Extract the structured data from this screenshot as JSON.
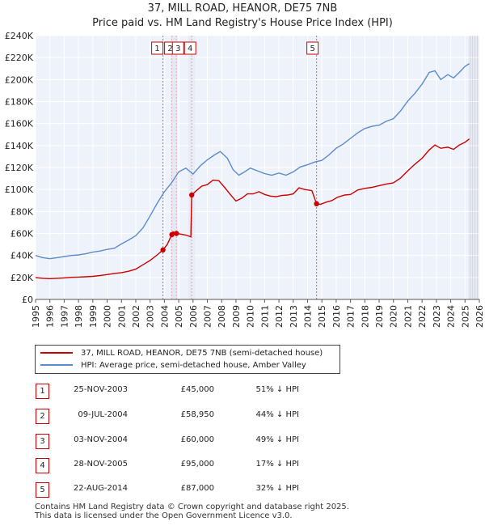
{
  "title_line1": "37, MILL ROAD, HEANOR, DE75 7NB",
  "title_line2": "Price paid vs. HM Land Registry's House Price Index (HPI)",
  "chart_data": {
    "type": "line",
    "xlim": [
      1995,
      2026
    ],
    "ylim": [
      0,
      240000
    ],
    "x_ticks": [
      "1995",
      "1996",
      "1997",
      "1998",
      "1999",
      "2000",
      "2001",
      "2002",
      "2003",
      "2004",
      "2005",
      "2006",
      "2007",
      "2008",
      "2009",
      "2010",
      "2011",
      "2012",
      "2013",
      "2014",
      "2015",
      "2016",
      "2017",
      "2018",
      "2019",
      "2020",
      "2021",
      "2022",
      "2023",
      "2024",
      "2025",
      "2026"
    ],
    "y_ticks": [
      {
        "value": 0,
        "label": "£0"
      },
      {
        "value": 20000,
        "label": "£20K"
      },
      {
        "value": 40000,
        "label": "£40K"
      },
      {
        "value": 60000,
        "label": "£60K"
      },
      {
        "value": 80000,
        "label": "£80K"
      },
      {
        "value": 100000,
        "label": "£100K"
      },
      {
        "value": 120000,
        "label": "£120K"
      },
      {
        "value": 140000,
        "label": "£140K"
      },
      {
        "value": 160000,
        "label": "£160K"
      },
      {
        "value": 180000,
        "label": "£180K"
      },
      {
        "value": 200000,
        "label": "£200K"
      },
      {
        "value": 220000,
        "label": "£220K"
      },
      {
        "value": 240000,
        "label": "£240K"
      }
    ],
    "forecast_start": 2025.25,
    "series": [
      {
        "name": "37, MILL ROAD, HEANOR, DE75 7NB (semi-detached house)",
        "color": "#cc0000",
        "points": [
          [
            1995.0,
            19800
          ],
          [
            1995.5,
            19200
          ],
          [
            1996.0,
            18900
          ],
          [
            1996.5,
            19200
          ],
          [
            1997.0,
            19600
          ],
          [
            1997.5,
            20100
          ],
          [
            1998.0,
            20300
          ],
          [
            1998.5,
            20600
          ],
          [
            1999.0,
            21000
          ],
          [
            1999.5,
            21700
          ],
          [
            2000.0,
            22600
          ],
          [
            2000.5,
            23600
          ],
          [
            2001.0,
            24400
          ],
          [
            2001.5,
            25600
          ],
          [
            2002.0,
            27500
          ],
          [
            2002.5,
            31500
          ],
          [
            2003.0,
            35500
          ],
          [
            2003.5,
            40500
          ],
          [
            2003.9,
            45000
          ],
          [
            2004.2,
            50000
          ],
          [
            2004.52,
            58950
          ],
          [
            2004.6,
            61500
          ],
          [
            2004.84,
            60000
          ],
          [
            2005.1,
            59500
          ],
          [
            2005.5,
            58500
          ],
          [
            2005.85,
            57000
          ],
          [
            2005.91,
            95000
          ],
          [
            2006.2,
            98500
          ],
          [
            2006.6,
            103000
          ],
          [
            2007.0,
            104500
          ],
          [
            2007.4,
            108500
          ],
          [
            2007.8,
            108000
          ],
          [
            2008.2,
            102000
          ],
          [
            2008.6,
            95500
          ],
          [
            2009.0,
            89500
          ],
          [
            2009.4,
            92000
          ],
          [
            2009.8,
            96000
          ],
          [
            2010.2,
            96000
          ],
          [
            2010.6,
            98000
          ],
          [
            2011.0,
            95500
          ],
          [
            2011.4,
            94000
          ],
          [
            2011.8,
            93500
          ],
          [
            2012.2,
            94500
          ],
          [
            2012.6,
            95000
          ],
          [
            2013.0,
            96000
          ],
          [
            2013.4,
            101500
          ],
          [
            2013.8,
            100000
          ],
          [
            2014.3,
            99000
          ],
          [
            2014.63,
            87000
          ],
          [
            2014.9,
            86500
          ],
          [
            2015.3,
            88500
          ],
          [
            2015.7,
            90000
          ],
          [
            2016.1,
            93000
          ],
          [
            2016.6,
            95000
          ],
          [
            2017.0,
            95500
          ],
          [
            2017.5,
            99500
          ],
          [
            2018.0,
            101000
          ],
          [
            2018.5,
            102000
          ],
          [
            2019.0,
            103500
          ],
          [
            2019.5,
            105000
          ],
          [
            2020.0,
            106000
          ],
          [
            2020.5,
            110500
          ],
          [
            2021.0,
            117000
          ],
          [
            2021.5,
            123000
          ],
          [
            2022.0,
            128500
          ],
          [
            2022.5,
            136000
          ],
          [
            2022.9,
            140500
          ],
          [
            2023.3,
            137500
          ],
          [
            2023.8,
            138500
          ],
          [
            2024.2,
            136500
          ],
          [
            2024.6,
            140500
          ],
          [
            2025.0,
            143000
          ],
          [
            2025.3,
            146000
          ]
        ]
      },
      {
        "name": "HPI: Average price, semi-detached house, Amber Valley",
        "color": "#5b8ccc",
        "points": [
          [
            1995.0,
            40000
          ],
          [
            1995.5,
            38000
          ],
          [
            1996.0,
            37000
          ],
          [
            1996.5,
            38000
          ],
          [
            1997.0,
            39000
          ],
          [
            1997.5,
            40000
          ],
          [
            1998.0,
            40500
          ],
          [
            1998.5,
            41500
          ],
          [
            1999.0,
            43000
          ],
          [
            1999.5,
            44000
          ],
          [
            2000.0,
            45500
          ],
          [
            2000.5,
            46500
          ],
          [
            2001.0,
            50500
          ],
          [
            2001.5,
            54000
          ],
          [
            2002.0,
            58000
          ],
          [
            2002.5,
            65000
          ],
          [
            2003.0,
            76000
          ],
          [
            2003.5,
            87500
          ],
          [
            2004.0,
            98000
          ],
          [
            2004.5,
            106000
          ],
          [
            2005.0,
            116000
          ],
          [
            2005.5,
            119500
          ],
          [
            2006.0,
            114000
          ],
          [
            2006.5,
            121500
          ],
          [
            2007.0,
            127000
          ],
          [
            2007.5,
            131500
          ],
          [
            2007.9,
            134500
          ],
          [
            2008.4,
            128500
          ],
          [
            2008.8,
            118000
          ],
          [
            2009.2,
            113000
          ],
          [
            2009.6,
            116000
          ],
          [
            2010.0,
            119500
          ],
          [
            2010.5,
            117000
          ],
          [
            2011.0,
            114500
          ],
          [
            2011.5,
            113000
          ],
          [
            2012.0,
            115000
          ],
          [
            2012.5,
            113000
          ],
          [
            2013.0,
            116000
          ],
          [
            2013.5,
            120500
          ],
          [
            2014.0,
            122500
          ],
          [
            2014.5,
            125000
          ],
          [
            2015.0,
            126500
          ],
          [
            2015.5,
            131500
          ],
          [
            2016.0,
            137500
          ],
          [
            2016.5,
            141500
          ],
          [
            2017.0,
            146500
          ],
          [
            2017.5,
            151500
          ],
          [
            2018.0,
            155500
          ],
          [
            2018.5,
            157500
          ],
          [
            2019.0,
            158500
          ],
          [
            2019.5,
            162000
          ],
          [
            2020.0,
            164500
          ],
          [
            2020.5,
            171500
          ],
          [
            2021.0,
            180500
          ],
          [
            2021.5,
            187500
          ],
          [
            2022.0,
            196000
          ],
          [
            2022.5,
            206500
          ],
          [
            2022.9,
            208000
          ],
          [
            2023.3,
            200000
          ],
          [
            2023.8,
            204500
          ],
          [
            2024.2,
            201500
          ],
          [
            2024.6,
            206500
          ],
          [
            2025.0,
            212000
          ],
          [
            2025.3,
            214500
          ]
        ]
      }
    ],
    "transactions": [
      {
        "num": "1",
        "x": 2003.9,
        "price": 45000
      },
      {
        "num": "2",
        "x": 2004.52,
        "price": 58950
      },
      {
        "num": "3",
        "x": 2004.84,
        "price": 60000
      },
      {
        "num": "4",
        "x": 2005.91,
        "price": 95000
      },
      {
        "num": "5",
        "x": 2014.63,
        "price": 87000
      }
    ],
    "marker_labels": [
      "1",
      "2",
      "3",
      "4",
      "5"
    ]
  },
  "legend": {
    "property_label": "37, MILL ROAD, HEANOR, DE75 7NB (semi-detached house)",
    "hpi_label": "HPI: Average price, semi-detached house, Amber Valley",
    "property_color": "#cc0000",
    "hpi_color": "#5b8ccc"
  },
  "table": [
    {
      "num": "1",
      "date": "25-NOV-2003",
      "price": "£45,000",
      "hpi": "51% ↓ HPI"
    },
    {
      "num": "2",
      "date": "09-JUL-2004",
      "price": "£58,950",
      "hpi": "44% ↓ HPI"
    },
    {
      "num": "3",
      "date": "03-NOV-2004",
      "price": "£60,000",
      "hpi": "49% ↓ HPI"
    },
    {
      "num": "4",
      "date": "28-NOV-2005",
      "price": "£95,000",
      "hpi": "17% ↓ HPI"
    },
    {
      "num": "5",
      "date": "22-AUG-2014",
      "price": "£87,000",
      "hpi": "32% ↓ HPI"
    }
  ],
  "footer_line1": "Contains HM Land Registry data © Crown copyright and database right 2025.",
  "footer_line2": "This data is licensed under the Open Government Licence v3.0."
}
